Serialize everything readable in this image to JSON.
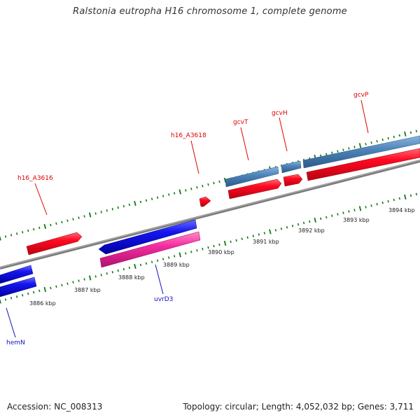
{
  "title": "Ralstonia eutropha H16 chromosome 1, complete genome",
  "footer": {
    "accession": "Accession: NC_008313",
    "topology": "Topology: circular; Length: 4,052,032 bp; Genes: 3,711"
  },
  "colors": {
    "backbone": "#808080",
    "tick": "#127a12",
    "red": "#f2001a",
    "blue": "#1010e8",
    "steelblue": "#4a7fb5",
    "pink": "#f0249a",
    "label_red": "#e00000",
    "label_blue": "#1010c0"
  },
  "coordinate_labels": [
    "3886 kbp",
    "3887 kbp",
    "3888 kbp",
    "3889 kbp",
    "3890 kbp",
    "3891 kbp",
    "3892 kbp",
    "3893 kbp",
    "3894 kbp"
  ],
  "gene_labels": [
    {
      "text": "h16_A3616",
      "color": "red"
    },
    {
      "text": "h16_A3618",
      "color": "red"
    },
    {
      "text": "gcvT",
      "color": "red"
    },
    {
      "text": "gcvH",
      "color": "red"
    },
    {
      "text": "gcvP",
      "color": "red"
    },
    {
      "text": "uvrD3",
      "color": "blue"
    },
    {
      "text": "hemN",
      "color": "blue"
    }
  ]
}
